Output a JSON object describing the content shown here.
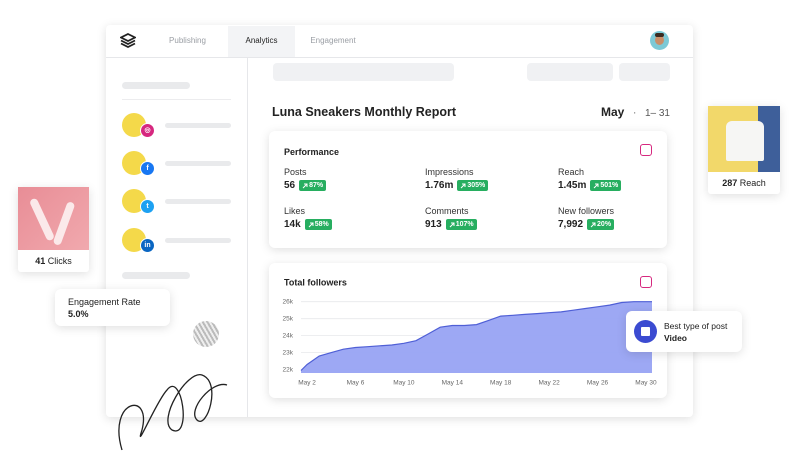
{
  "nav": {
    "tabs": [
      "Publishing",
      "Analytics",
      "Engagement"
    ]
  },
  "report": {
    "title": "Luna Sneakers Monthly Report",
    "month": "May",
    "range": "1– 31"
  },
  "performance": {
    "title": "Performance",
    "metrics": [
      {
        "label": "Posts",
        "value": "56",
        "change": "87%"
      },
      {
        "label": "Impressions",
        "value": "1.76m",
        "change": "305%"
      },
      {
        "label": "Reach",
        "value": "1.45m",
        "change": "501%"
      },
      {
        "label": "Likes",
        "value": "14k",
        "change": "58%"
      },
      {
        "label": "Comments",
        "value": "913",
        "change": "107%"
      },
      {
        "label": "New followers",
        "value": "7,992",
        "change": "20%"
      }
    ]
  },
  "chart_data": {
    "type": "area",
    "title": "Total followers",
    "x": [
      1.5,
      2,
      3,
      4,
      5,
      6,
      7,
      8,
      9,
      10,
      11,
      12,
      13,
      14,
      15,
      16,
      17,
      18,
      19,
      20,
      21,
      22,
      23,
      24,
      25,
      26,
      27,
      28,
      29,
      30,
      30.5
    ],
    "values": [
      21950,
      22300,
      22800,
      23000,
      23200,
      23300,
      23350,
      23400,
      23450,
      23550,
      23700,
      24100,
      24500,
      24600,
      24600,
      24650,
      24900,
      25150,
      25200,
      25250,
      25300,
      25350,
      25400,
      25500,
      25600,
      25700,
      25800,
      25950,
      26000,
      26000,
      26000
    ],
    "color": "#4f5fd6",
    "fill": "#98a3f3",
    "xlim": [
      1.5,
      30.5
    ],
    "ylim": [
      21800,
      26100
    ],
    "xticks": [
      {
        "value": 2,
        "label": "May 2"
      },
      {
        "value": 6,
        "label": "May 6"
      },
      {
        "value": 10,
        "label": "May 10"
      },
      {
        "value": 14,
        "label": "May 14"
      },
      {
        "value": 18,
        "label": "May 18"
      },
      {
        "value": 22,
        "label": "May 22"
      },
      {
        "value": 26,
        "label": "May 26"
      },
      {
        "value": 30,
        "label": "May 30"
      }
    ],
    "yticks": [
      {
        "value": 22000,
        "label": "22k"
      },
      {
        "value": 23000,
        "label": "23k"
      },
      {
        "value": 24000,
        "label": "24k"
      },
      {
        "value": 25000,
        "label": "25k"
      },
      {
        "value": 26000,
        "label": "26k"
      }
    ],
    "grid": true
  },
  "floating": {
    "clicks": {
      "value": "41",
      "label": "Clicks"
    },
    "engagement": {
      "label": "Engagement Rate",
      "value": "5.0%"
    },
    "reach": {
      "value": "287",
      "label": "Reach"
    },
    "best_post": {
      "label": "Best type of post",
      "value": "Video"
    }
  }
}
